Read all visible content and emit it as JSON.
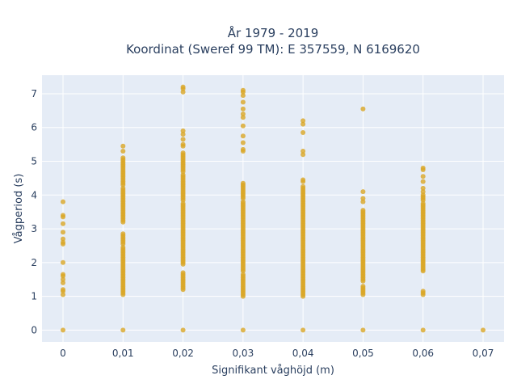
{
  "chart_data": {
    "type": "scatter",
    "title_line1": "År 1979 - 2019",
    "title_line2": "Koordinat (Sweref 99 TM): E 357559, N 6169620",
    "xlabel": "Signifikant våghöjd (m)",
    "ylabel": "Vågperiod (s)",
    "xlim": [
      -0.0035,
      0.0735
    ],
    "ylim": [
      -0.35,
      7.55
    ],
    "x_ticks": [
      0,
      0.01,
      0.02,
      0.03,
      0.04,
      0.05,
      0.06,
      0.07
    ],
    "x_tick_labels": [
      "0",
      "0,01",
      "0,02",
      "0,03",
      "0,04",
      "0,05",
      "0,06",
      "0,07"
    ],
    "y_ticks": [
      0,
      1,
      2,
      3,
      4,
      5,
      6,
      7
    ],
    "y_tick_labels": [
      "0",
      "1",
      "2",
      "3",
      "4",
      "5",
      "6",
      "7"
    ],
    "grid": true,
    "marker_color": "#d9a626",
    "plot_background": "#e5ecf6",
    "columns": [
      {
        "x": 0,
        "points": [
          0,
          1.05,
          1.15,
          1.2,
          1.4,
          1.5,
          1.6,
          1.65,
          2.0,
          2.55,
          2.6,
          2.7,
          2.9,
          3.15,
          3.35,
          3.4,
          3.8
        ],
        "ranges": []
      },
      {
        "x": 0.01,
        "points": [
          0,
          5.1,
          5.3,
          5.45
        ],
        "ranges": [
          [
            1.05,
            2.45
          ],
          [
            2.55,
            2.85
          ],
          [
            3.2,
            4.2
          ],
          [
            4.3,
            5.05
          ]
        ]
      },
      {
        "x": 0.02,
        "points": [
          0,
          7.05,
          7.15,
          7.2,
          5.45,
          5.5,
          5.65,
          5.8,
          5.9
        ],
        "ranges": [
          [
            1.2,
            1.7
          ],
          [
            1.95,
            3.75
          ],
          [
            3.85,
            4.6
          ],
          [
            4.7,
            5.25
          ]
        ]
      },
      {
        "x": 0.03,
        "points": [
          0,
          5.3,
          5.35,
          5.55,
          5.75,
          6.05,
          6.3,
          6.4,
          6.55,
          6.75,
          6.95,
          7.05,
          7.1
        ],
        "ranges": [
          [
            1.0,
            1.65
          ],
          [
            1.75,
            3.8
          ],
          [
            3.9,
            4.35
          ]
        ]
      },
      {
        "x": 0.04,
        "points": [
          0,
          4.4,
          4.45,
          5.2,
          5.3,
          5.85,
          6.1,
          6.2
        ],
        "ranges": [
          [
            1.0,
            1.85
          ],
          [
            1.9,
            3.3
          ],
          [
            3.35,
            4.25
          ]
        ]
      },
      {
        "x": 0.05,
        "points": [
          0,
          3.8,
          3.9,
          4.1,
          6.55
        ],
        "ranges": [
          [
            1.05,
            1.3
          ],
          [
            1.45,
            3.55
          ]
        ]
      },
      {
        "x": 0.06,
        "points": [
          0,
          1.05,
          1.1,
          1.15,
          4.1,
          4.2,
          4.4,
          4.55,
          4.75,
          4.8
        ],
        "ranges": [
          [
            1.75,
            3.75
          ],
          [
            3.85,
            4.0
          ]
        ]
      },
      {
        "x": 0.07,
        "points": [
          0
        ],
        "ranges": []
      }
    ]
  }
}
